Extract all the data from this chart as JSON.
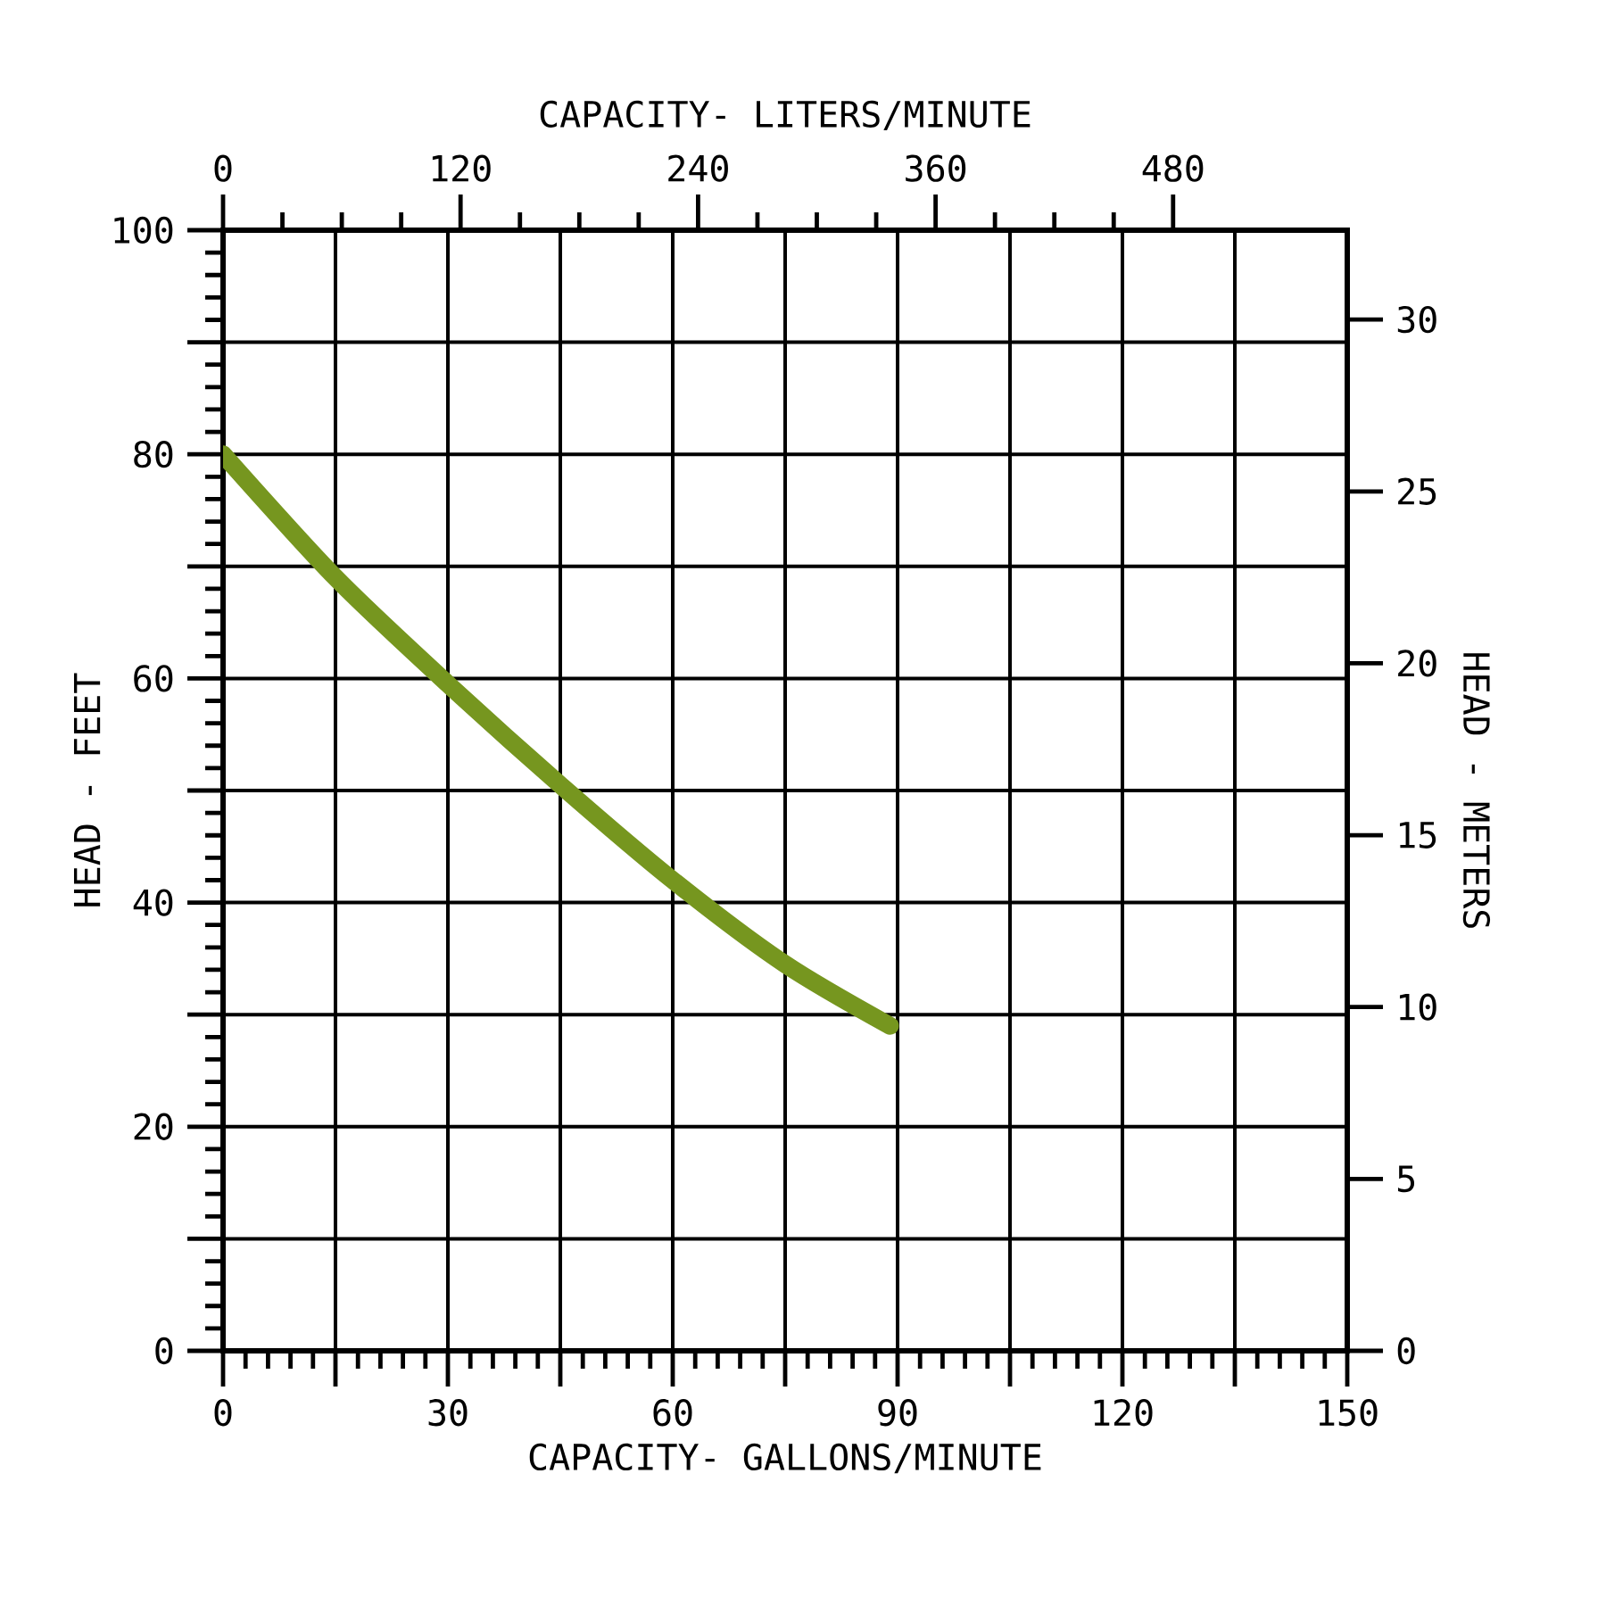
{
  "chart_data": {
    "type": "line",
    "xlabel": "CAPACITY- GALLONS/MINUTE",
    "ylabel": "HEAD - FEET",
    "x2label": "CAPACITY- LITERS/MINUTE",
    "y2label": "HEAD - METERS",
    "x": [
      0,
      15,
      30,
      45,
      60,
      75,
      89
    ],
    "series": [
      {
        "color": "#76961f",
        "values": [
          80,
          69,
          59.5,
          50.5,
          42,
          34.5,
          29
        ]
      }
    ],
    "xlim": [
      0,
      150
    ],
    "xticks": [
      0,
      {
        "value": 15,
        "label": null
      },
      30,
      {
        "value": 45,
        "label": null
      },
      60,
      {
        "value": 75,
        "label": null
      },
      90,
      {
        "value": 105,
        "label": null
      },
      120,
      {
        "value": 135,
        "label": null
      },
      150
    ],
    "ylim": [
      0,
      100
    ],
    "yticks": [
      0,
      {
        "value": 10,
        "label": null
      },
      20,
      {
        "value": 30,
        "label": null
      },
      40,
      {
        "value": 50,
        "label": null
      },
      60,
      {
        "value": 70,
        "label": null
      },
      80,
      {
        "value": 90,
        "label": null
      },
      100
    ],
    "x2lim": [
      0,
      568
    ],
    "x2ticks": [
      0,
      120,
      240,
      360,
      480
    ],
    "y2lim": [
      0,
      32.6
    ],
    "y2ticks": [
      0,
      5,
      10,
      15,
      20,
      25,
      30
    ],
    "grid": true
  }
}
